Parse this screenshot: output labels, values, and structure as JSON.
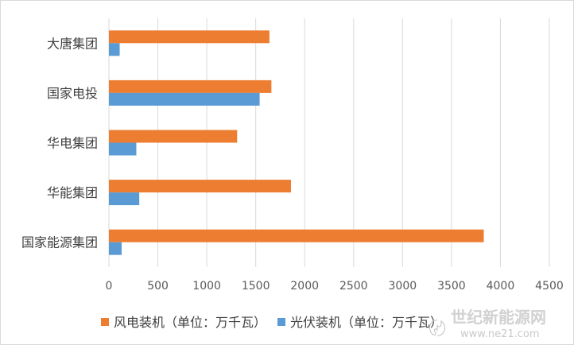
{
  "chart_data": {
    "type": "bar",
    "orientation": "horizontal",
    "categories": [
      "大唐集团",
      "国家电投",
      "华电集团",
      "华能集团",
      "国家能源集团"
    ],
    "series": [
      {
        "name": "风电装机（单位：万千瓦）",
        "values": [
          1640,
          1660,
          1310,
          1860,
          3830
        ]
      },
      {
        "name": "光伏装机（单位：万千瓦）",
        "values": [
          110,
          1540,
          280,
          310,
          130
        ]
      }
    ],
    "xlim": [
      0,
      4500
    ],
    "xticks": [
      0,
      500,
      1000,
      1500,
      2000,
      2500,
      3000,
      3500,
      4000,
      4500
    ],
    "grid": true,
    "legend_position": "bottom",
    "colors": {
      "series1": "#ed7d31",
      "series2": "#5b9bd5",
      "grid": "#d9d9d9",
      "text": "#595959"
    }
  },
  "watermark": {
    "title": "世纪新能源网",
    "url": "www.ne21.com"
  }
}
